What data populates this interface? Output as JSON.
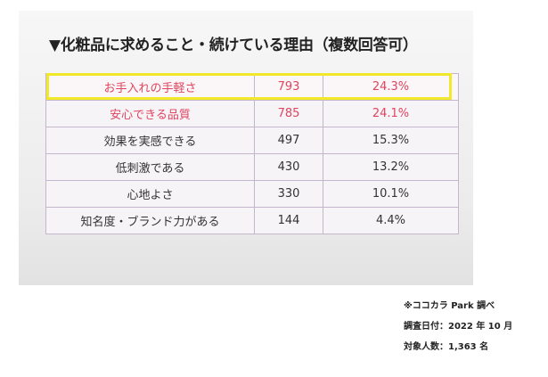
{
  "title": "▼化粧品に求めること・続けている理由（複数回答可）",
  "table": {
    "rows": [
      {
        "reason": "お手入れの手軽さ",
        "count": "793",
        "percent": "24.3%",
        "accent": true
      },
      {
        "reason": "安心できる品質",
        "count": "785",
        "percent": "24.1%",
        "accent": true
      },
      {
        "reason": "効果を実感できる",
        "count": "497",
        "percent": "15.3%",
        "accent": false
      },
      {
        "reason": "低刺激である",
        "count": "430",
        "percent": "13.2%",
        "accent": false
      },
      {
        "reason": "心地よさ",
        "count": "330",
        "percent": "10.1%",
        "accent": false
      },
      {
        "reason": "知名度・ブランド力がある",
        "count": "144",
        "percent": "4.4%",
        "accent": false
      }
    ]
  },
  "notes": {
    "source": "※ココカラ Park 調べ",
    "survey_date": "調査日付：2022 年 10 月",
    "respondents": "対象人数：1,363 名"
  },
  "colors": {
    "accent_text": "#e0445e",
    "highlight_border": "#f2e82a",
    "cell_border": "#c3b6cd"
  }
}
